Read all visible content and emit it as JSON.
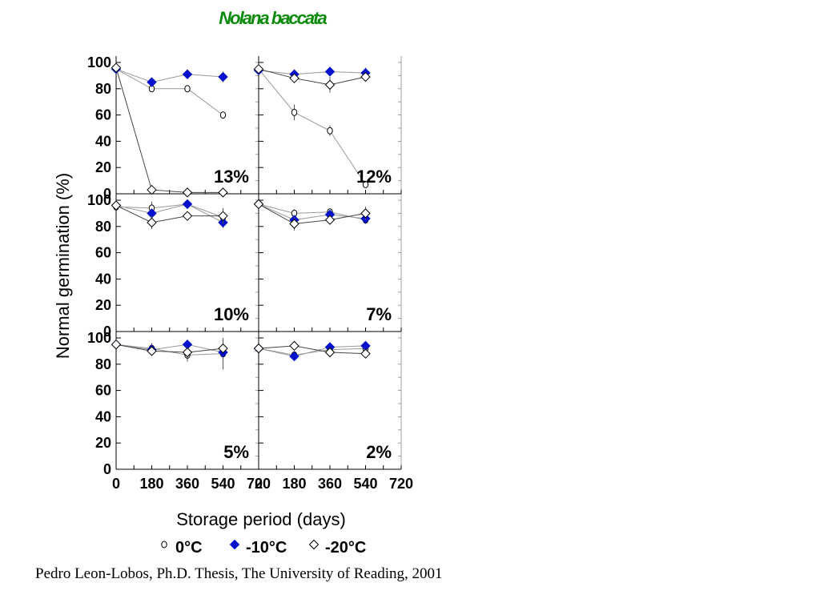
{
  "citation": "Pedro Leon-Lobos, Ph.D. Thesis, The University of Reading, 2001",
  "colors": {
    "title": "#0a8a0a",
    "series_minus10": "#0010cc",
    "axes": "#000000"
  },
  "chart_data": {
    "type": "line",
    "title": "Nolana baccata",
    "ylabel": "Normal germination (%)",
    "xlabel": "Storage period (days)",
    "ylim": [
      0,
      100
    ],
    "xlim": [
      0,
      720
    ],
    "yticks": [
      0,
      20,
      40,
      60,
      80,
      100
    ],
    "xticks": [
      0,
      180,
      360,
      540,
      720
    ],
    "xtick_labels": [
      "0",
      "180",
      "360",
      "540",
      "720"
    ],
    "grid": false,
    "legend": {
      "placement": "bottom",
      "entries": [
        {
          "marker": "circle-open",
          "label": "0°C"
        },
        {
          "marker": "diamond-filled",
          "label": "-10°C"
        },
        {
          "marker": "diamond-open",
          "label": "-20°C"
        }
      ]
    },
    "panels": [
      {
        "label": "13%",
        "series": [
          {
            "name": "0°C",
            "x": [
              0,
              180,
              360,
              540
            ],
            "y": [
              95,
              80,
              80,
              60
            ],
            "err": [
              2,
              2,
              2,
              2
            ]
          },
          {
            "name": "-10°C",
            "x": [
              0,
              180,
              360,
              540
            ],
            "y": [
              95,
              85,
              91,
              89
            ],
            "err": [
              2,
              2,
              2,
              4
            ]
          },
          {
            "name": "-20°C",
            "x": [
              0,
              180,
              360,
              540
            ],
            "y": [
              96,
              3,
              1,
              1
            ],
            "err": [
              2,
              1,
              1,
              1
            ]
          }
        ]
      },
      {
        "label": "12%",
        "series": [
          {
            "name": "0°C",
            "x": [
              0,
              180,
              360,
              540
            ],
            "y": [
              95,
              62,
              48,
              7
            ],
            "err": [
              3,
              6,
              4,
              1
            ]
          },
          {
            "name": "-10°C",
            "x": [
              0,
              180,
              360,
              540
            ],
            "y": [
              94,
              91,
              93,
              92
            ],
            "err": [
              3,
              3,
              3,
              4
            ]
          },
          {
            "name": "-20°C",
            "x": [
              0,
              180,
              360,
              540
            ],
            "y": [
              95,
              88,
              83,
              89
            ],
            "err": [
              4,
              3,
              6,
              3
            ]
          }
        ]
      },
      {
        "label": "10%",
        "series": [
          {
            "name": "0°C",
            "x": [
              0,
              180,
              360,
              540
            ],
            "y": [
              95,
              94,
              97,
              87
            ],
            "err": [
              2,
              5,
              2,
              5
            ]
          },
          {
            "name": "-10°C",
            "x": [
              0,
              180,
              360,
              540
            ],
            "y": [
              96,
              90,
              97,
              83
            ],
            "err": [
              2,
              3,
              2,
              4
            ]
          },
          {
            "name": "-20°C",
            "x": [
              0,
              180,
              360,
              540
            ],
            "y": [
              96,
              83,
              88,
              88
            ],
            "err": [
              2,
              5,
              3,
              6
            ]
          }
        ]
      },
      {
        "label": "7%",
        "series": [
          {
            "name": "0°C",
            "x": [
              0,
              180,
              360,
              540
            ],
            "y": [
              97,
              90,
              91,
              85
            ],
            "err": [
              2,
              3,
              2,
              3
            ]
          },
          {
            "name": "-10°C",
            "x": [
              0,
              180,
              360,
              540
            ],
            "y": [
              97,
              85,
              89,
              86
            ],
            "err": [
              2,
              3,
              3,
              3
            ]
          },
          {
            "name": "-20°C",
            "x": [
              0,
              180,
              360,
              540
            ],
            "y": [
              97,
              82,
              85,
              90
            ],
            "err": [
              2,
              5,
              3,
              5
            ]
          }
        ]
      },
      {
        "label": "5%",
        "series": [
          {
            "name": "0°C",
            "x": [
              0,
              180,
              360,
              540
            ],
            "y": [
              95,
              92,
              87,
              88
            ],
            "err": [
              3,
              4,
              5,
              12
            ]
          },
          {
            "name": "-10°C",
            "x": [
              0,
              180,
              360,
              540
            ],
            "y": [
              95,
              91,
              95,
              89
            ],
            "err": [
              2,
              3,
              3,
              5
            ]
          },
          {
            "name": "-20°C",
            "x": [
              0,
              180,
              360,
              540
            ],
            "y": [
              95,
              90,
              89,
              92
            ],
            "err": [
              2,
              3,
              4,
              3
            ]
          }
        ]
      },
      {
        "label": "2%",
        "series": [
          {
            "name": "0°C",
            "x": [
              0,
              180,
              360,
              540
            ],
            "y": [
              92,
              87,
              91,
              92
            ],
            "err": [
              3,
              3,
              2,
              3
            ]
          },
          {
            "name": "-10°C",
            "x": [
              0,
              180,
              360,
              540
            ],
            "y": [
              92,
              86,
              93,
              94
            ],
            "err": [
              3,
              2,
              3,
              3
            ]
          },
          {
            "name": "-20°C",
            "x": [
              0,
              180,
              360,
              540
            ],
            "y": [
              92,
              94,
              89,
              88
            ],
            "err": [
              3,
              3,
              3,
              3
            ]
          }
        ]
      }
    ]
  }
}
